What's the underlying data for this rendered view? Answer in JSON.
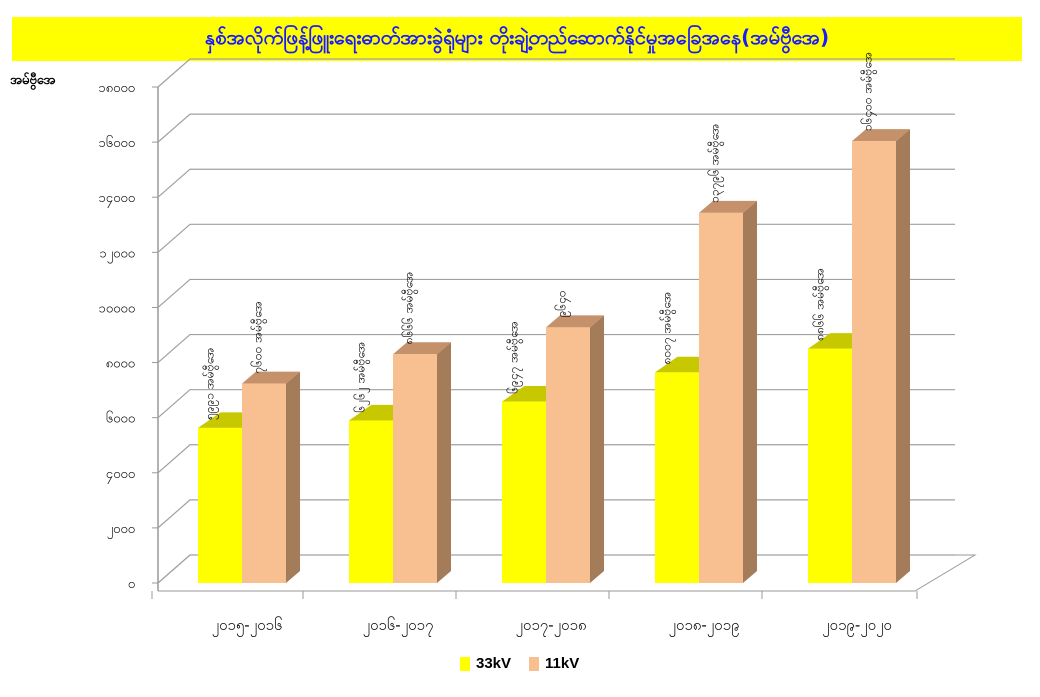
{
  "chart_data": {
    "type": "bar",
    "title": "နှစ်အလိုက်ဖြန့်ဖြူးရေးဓာတ်အားခွဲရုံများ တိုးချဲ့တည်ဆောက်နိုင်မှုအခြေအနေ(အမ်ဗွီအေ)",
    "xlabel": "",
    "ylabel": "အမ်ဗွီအေ",
    "ylim": [
      0,
      18000
    ],
    "yticks": [
      {
        "value": 0,
        "label": "၀"
      },
      {
        "value": 2000,
        "label": "၂၀၀၀"
      },
      {
        "value": 4000,
        "label": "၄၀၀၀"
      },
      {
        "value": 6000,
        "label": "၆၀၀၀"
      },
      {
        "value": 8000,
        "label": "၈၀၀၀"
      },
      {
        "value": 10000,
        "label": "၁၀၀၀၀"
      },
      {
        "value": 12000,
        "label": "၁၂၀၀၀"
      },
      {
        "value": 14000,
        "label": "၁၄၀၀၀"
      },
      {
        "value": 16000,
        "label": "၁၆၀၀၀"
      },
      {
        "value": 18000,
        "label": "၁၈၀၀၀"
      }
    ],
    "categories": [
      "၂၀၁၅-၂၀၁၆",
      "၂၀၁၆-၂၀၁၇",
      "၂၀၁၇-၂၀၁၈",
      "၂၀၁၈-၂၀၁၉",
      "၂၀၁၉-၂၀၂၀"
    ],
    "series": [
      {
        "name": "33kV",
        "color": "#ffff00",
        "top_color": "#c8c800",
        "values": [
          5991,
          6262,
          6947,
          8007,
          8866
        ],
        "labels": [
          "၅၉၉၁ အမ်ဗွီအေ",
          "၆၂၆၂ အမ်ဗွီအေ",
          "၆၉၄၇ အမ်ဗွီအေ",
          "၈၀၀၇ အမ်ဗွီအေ",
          "၈၈၆၆ အမ်ဗွီအေ"
        ]
      },
      {
        "name": "11kV",
        "color": "#f8c090",
        "top_color": "#c4916a",
        "side_color": "#a47c5a",
        "values": [
          7600,
          8666,
          9640,
          13796,
          16400
        ],
        "labels": [
          "၇၆၀၀ အမ်ဗွီအေ",
          "၈၆၆၆ အမ်ဗွီအေ",
          "၉၆၄၀",
          "၁၃၇၉၆ အမ်ဗွီအေ",
          "၁၆၄၀၀ အမ်ဗွီအေ"
        ]
      }
    ],
    "grid": true,
    "legend_position": "bottom"
  }
}
